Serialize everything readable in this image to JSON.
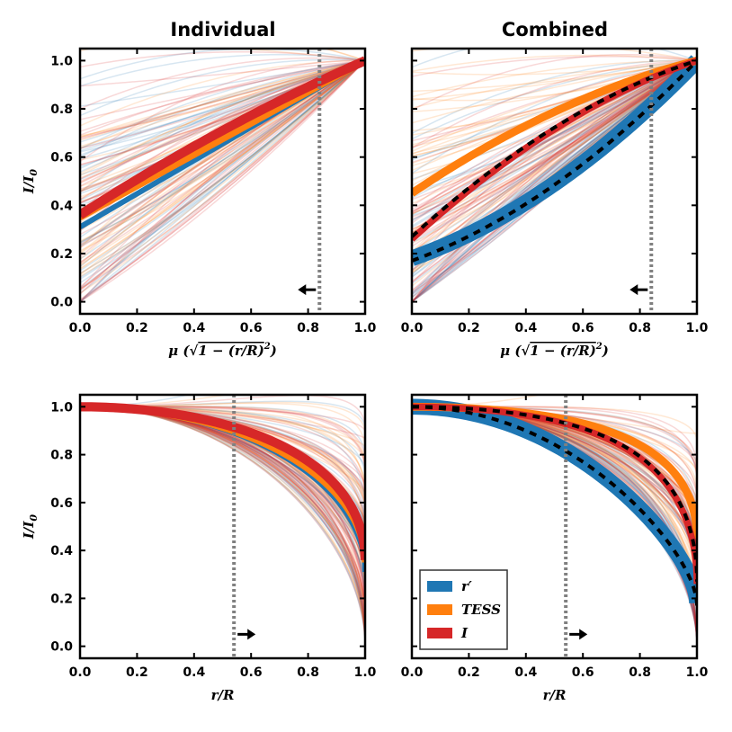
{
  "columns": {
    "left_title": "Individual",
    "right_title": "Combined"
  },
  "colors": {
    "r_prime": "#1f77b4",
    "TESS": "#ff7f0e",
    "I": "#d62728",
    "marker_line": "#808080"
  },
  "legend": {
    "items": [
      {
        "label": "r′",
        "color": "#1f77b4"
      },
      {
        "label": "TESS",
        "color": "#ff7f0e"
      },
      {
        "label": "I",
        "color": "#d62728"
      }
    ]
  },
  "chart_data": [
    {
      "type": "line",
      "id": "top-left",
      "title": "Individual",
      "x_variable": "mu",
      "xlabel_main": "μ",
      "xlabel_sqrt": "1 − (r/R)",
      "xlabel_exp": "2",
      "ylabel_main": "I/I",
      "ylabel_sub": "0",
      "xlim": [
        0,
        1
      ],
      "ylim": [
        -0.05,
        1.05
      ],
      "x_ticks": [
        "0.0",
        "0.2",
        "0.4",
        "0.6",
        "0.8",
        "1.0"
      ],
      "y_ticks": [
        "0.0",
        "0.2",
        "0.4",
        "0.6",
        "0.8",
        "1.0"
      ],
      "vline_x": 0.84,
      "arrow_direction": "left",
      "arrow_y": 0.05,
      "show_y_ticklabels": true,
      "series": [
        {
          "name": "r′",
          "intensity_at_center": 0.31,
          "u1": 0.69,
          "u2": 0.0,
          "band_width": 0.02
        },
        {
          "name": "TESS",
          "intensity_at_center": 0.35,
          "u1": 0.65,
          "u2": 0.0,
          "band_width": 0.025
        },
        {
          "name": "I",
          "intensity_at_center": 0.36,
          "u1": 0.76,
          "u2": -0.12,
          "band_width": 0.035
        }
      ]
    },
    {
      "type": "line",
      "id": "top-right",
      "title": "Combined",
      "x_variable": "mu",
      "xlabel_main": "μ",
      "xlabel_sqrt": "1 − (r/R)",
      "xlabel_exp": "2",
      "ylabel_main": "",
      "ylabel_sub": "",
      "xlim": [
        0,
        1
      ],
      "ylim": [
        -0.05,
        1.05
      ],
      "x_ticks": [
        "0.0",
        "0.2",
        "0.4",
        "0.6",
        "0.8",
        "1.0"
      ],
      "y_ticks": [],
      "vline_x": 0.84,
      "arrow_direction": "left",
      "arrow_y": 0.05,
      "show_y_ticklabels": false,
      "series": [
        {
          "name": "r′",
          "intensity_at_center": 0.18,
          "u1": 0.42,
          "u2": 0.4,
          "band_width": 0.06
        },
        {
          "name": "TESS",
          "intensity_at_center": 0.45,
          "u1": 0.8,
          "u2": -0.25,
          "band_width": 0.03
        },
        {
          "name": "I",
          "intensity_at_center": 0.26,
          "u1": 1.08,
          "u2": -0.34,
          "band_width": 0.025
        }
      ],
      "dashed_fits": [
        {
          "name": "I fit",
          "intensity_at_center": 0.27,
          "u1": 1.08,
          "u2": -0.35
        },
        {
          "name": "r′ fit",
          "intensity_at_center": 0.17,
          "u1": 0.43,
          "u2": 0.4
        }
      ]
    },
    {
      "type": "line",
      "id": "bottom-left",
      "title": "",
      "x_variable": "r",
      "xlabel_main": "r/R",
      "ylabel_main": "I/I",
      "ylabel_sub": "0",
      "xlim": [
        0,
        1
      ],
      "ylim": [
        -0.05,
        1.05
      ],
      "x_ticks": [
        "0.0",
        "0.2",
        "0.4",
        "0.6",
        "0.8",
        "1.0"
      ],
      "y_ticks": [
        "0.0",
        "0.2",
        "0.4",
        "0.6",
        "0.8",
        "1.0"
      ],
      "vline_x": 0.54,
      "arrow_direction": "right",
      "arrow_y": 0.05,
      "show_y_ticklabels": true,
      "series": [
        {
          "name": "r′",
          "intensity_at_center": 0.31,
          "u1": 0.69,
          "u2": 0.0,
          "band_width": 0.02
        },
        {
          "name": "TESS",
          "intensity_at_center": 0.35,
          "u1": 0.65,
          "u2": 0.0,
          "band_width": 0.025
        },
        {
          "name": "I",
          "intensity_at_center": 0.36,
          "u1": 0.76,
          "u2": -0.12,
          "band_width": 0.035
        }
      ]
    },
    {
      "type": "line",
      "id": "bottom-right",
      "title": "",
      "x_variable": "r",
      "xlabel_main": "r/R",
      "ylabel_main": "",
      "ylabel_sub": "",
      "xlim": [
        0,
        1
      ],
      "ylim": [
        -0.05,
        1.05
      ],
      "x_ticks": [
        "0.0",
        "0.2",
        "0.4",
        "0.6",
        "0.8",
        "1.0"
      ],
      "y_ticks": [],
      "vline_x": 0.54,
      "arrow_direction": "right",
      "arrow_y": 0.05,
      "show_y_ticklabels": false,
      "series": [
        {
          "name": "r′",
          "intensity_at_center": 0.18,
          "u1": 0.42,
          "u2": 0.4,
          "band_width": 0.06
        },
        {
          "name": "TESS",
          "intensity_at_center": 0.45,
          "u1": 0.8,
          "u2": -0.25,
          "band_width": 0.03
        },
        {
          "name": "I",
          "intensity_at_center": 0.26,
          "u1": 1.08,
          "u2": -0.34,
          "band_width": 0.025
        }
      ],
      "dashed_fits": [
        {
          "name": "I fit",
          "intensity_at_center": 0.27,
          "u1": 1.08,
          "u2": -0.35
        },
        {
          "name": "r′ fit",
          "intensity_at_center": 0.17,
          "u1": 0.43,
          "u2": 0.4
        }
      ]
    }
  ]
}
